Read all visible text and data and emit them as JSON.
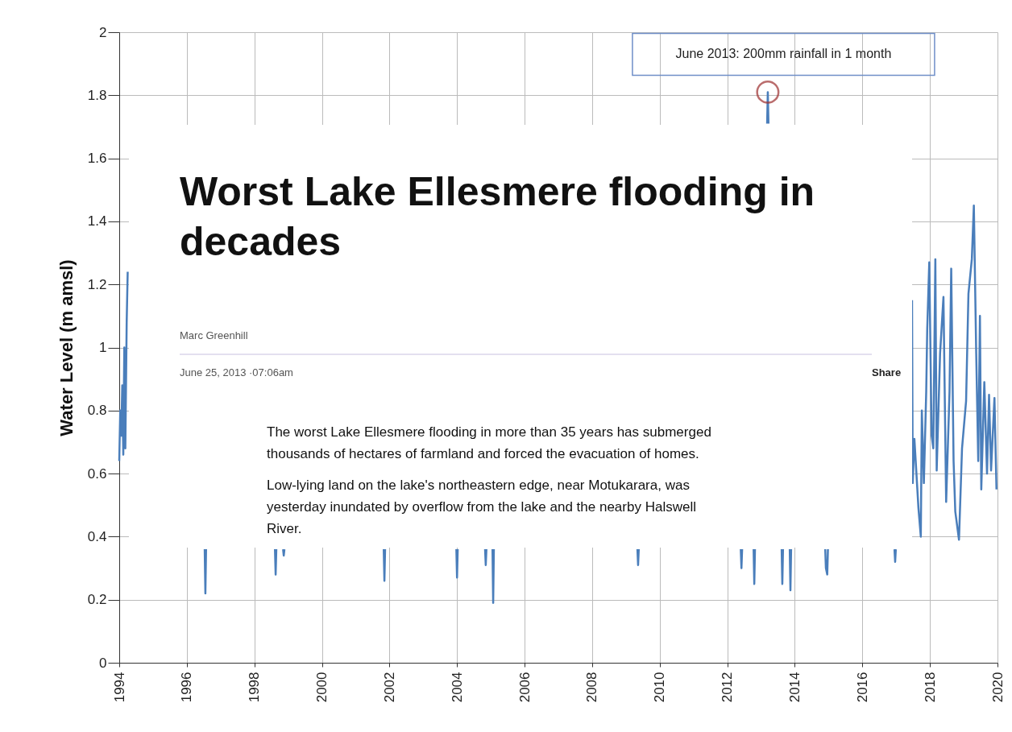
{
  "chart_data": {
    "type": "line",
    "ylabel": "Water Level (m amsl)",
    "xlim": [
      1994,
      2020
    ],
    "xticks": [
      1994,
      1996,
      1998,
      2000,
      2002,
      2004,
      2006,
      2008,
      2010,
      2012,
      2014,
      2016,
      2018,
      2020
    ],
    "ylim": [
      0,
      2
    ],
    "yticks": [
      0,
      0.2,
      0.4,
      0.6,
      0.8,
      1,
      1.2,
      1.4,
      1.6,
      1.8,
      2
    ],
    "grid": true,
    "series": [
      {
        "color": "#4a7ebb",
        "x": [
          1994.0,
          1994.03,
          1994.06,
          1994.09,
          1994.12,
          1994.15,
          1994.18,
          1994.22,
          1994.25,
          1994.3,
          1996.53,
          1996.55,
          1996.57,
          1996.6,
          1998.61,
          1998.63,
          1998.65,
          1998.7,
          1998.85,
          1998.87,
          1998.89,
          1998.93,
          2001.83,
          2001.85,
          2001.87,
          2001.9,
          2003.98,
          2004.0,
          2004.02,
          2004.05,
          2004.83,
          2004.85,
          2004.87,
          2004.9,
          2005.05,
          2005.07,
          2005.09,
          2005.12,
          2009.34,
          2009.36,
          2009.38,
          2009.42,
          2012.4,
          2012.42,
          2012.44,
          2012.48,
          2012.78,
          2012.8,
          2012.82,
          2012.86,
          2013.18,
          2013.2,
          2013.22,
          2013.24,
          2013.61,
          2013.63,
          2013.65,
          2013.7,
          2013.85,
          2013.87,
          2013.89,
          2013.93,
          2014.9,
          2014.92,
          2014.96,
          2014.98,
          2015.02,
          2016.95,
          2016.97,
          2016.99,
          2017.03,
          2017.47,
          2017.49,
          2017.54,
          2017.66,
          2017.73,
          2017.76,
          2017.82,
          2017.89,
          2017.92,
          2017.98,
          2018.05,
          2018.1,
          2018.16,
          2018.2,
          2018.3,
          2018.4,
          2018.48,
          2018.58,
          2018.63,
          2018.7,
          2018.75,
          2018.86,
          2018.95,
          2019.07,
          2019.14,
          2019.24,
          2019.3,
          2019.37,
          2019.43,
          2019.48,
          2019.52,
          2019.61,
          2019.69,
          2019.75,
          2019.81,
          2019.91,
          2019.97
        ],
        "values": [
          0.64,
          0.8,
          0.72,
          0.88,
          0.66,
          1.0,
          0.68,
          1.08,
          1.24,
          null,
          0.36,
          0.22,
          0.36,
          null,
          0.36,
          0.28,
          0.36,
          null,
          0.36,
          0.34,
          0.36,
          null,
          0.36,
          0.26,
          0.36,
          null,
          0.36,
          0.27,
          0.36,
          null,
          0.36,
          0.31,
          0.36,
          null,
          0.36,
          0.19,
          0.36,
          null,
          0.36,
          0.31,
          0.36,
          null,
          0.36,
          0.3,
          0.36,
          null,
          0.36,
          0.25,
          0.36,
          null,
          1.71,
          1.81,
          1.71,
          null,
          0.36,
          0.25,
          0.36,
          null,
          0.36,
          0.23,
          0.36,
          null,
          0.36,
          0.3,
          0.28,
          0.36,
          null,
          0.36,
          0.32,
          0.36,
          null,
          1.15,
          0.57,
          0.71,
          0.49,
          0.4,
          0.8,
          0.57,
          0.86,
          1.06,
          1.27,
          0.72,
          0.68,
          1.28,
          0.61,
          0.98,
          1.16,
          0.51,
          0.86,
          1.25,
          0.64,
          0.48,
          0.39,
          0.68,
          0.83,
          1.17,
          1.28,
          1.45,
          0.98,
          0.64,
          1.1,
          0.55,
          0.89,
          0.6,
          0.85,
          0.61,
          0.84,
          0.55
        ]
      }
    ],
    "annotations": [
      {
        "text": "June 2013: 200mm rainfall in 1 month",
        "x": 2013.2,
        "y": 1.81
      },
      "Worst Lake Ellesmere flooding in decades",
      "Marc Greenhill",
      "June 25, 2013 ·07:06am",
      "Share",
      "The worst Lake Ellesmere flooding in more than 35 years has submerged thousands of hectares of farmland and forced the evacuation of homes.",
      "Low-lying land on the lake's northeastern edge, near Motukarara, was yesterday inundated by overflow from the lake and the nearby Halswell River."
    ]
  }
}
